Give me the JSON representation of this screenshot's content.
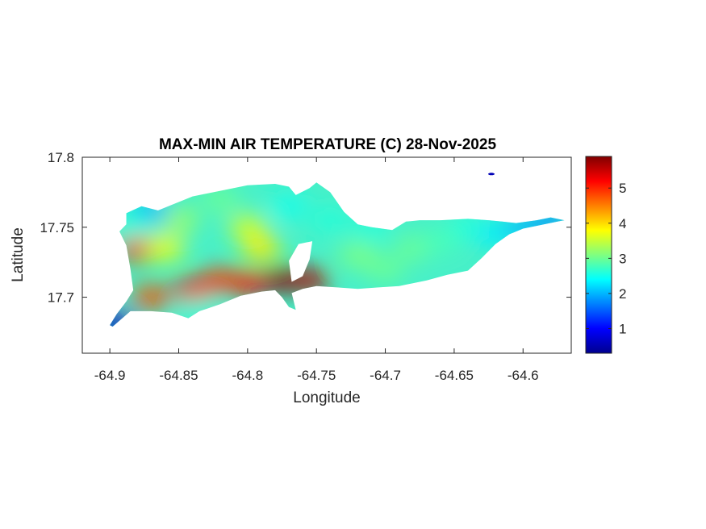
{
  "chart_data": {
    "type": "heatmap",
    "title": "MAX-MIN AIR TEMPERATURE (C) 28-Nov-2025",
    "xlabel": "Longitude",
    "ylabel": "Latitude",
    "xlim": [
      -64.92,
      -64.565
    ],
    "ylim": [
      17.66,
      17.8
    ],
    "xticks": [
      -64.9,
      -64.85,
      -64.8,
      -64.75,
      -64.7,
      -64.65,
      -64.6
    ],
    "xtick_labels": [
      "-64.9",
      "-64.85",
      "-64.8",
      "-64.75",
      "-64.7",
      "-64.65",
      "-64.6"
    ],
    "yticks": [
      17.7,
      17.75,
      17.8
    ],
    "ytick_labels": [
      "17.7",
      "17.75",
      "17.8"
    ],
    "colorbar": {
      "colormap": "jet",
      "range": [
        0.3,
        5.9
      ],
      "ticks": [
        1,
        2,
        3,
        4,
        5
      ],
      "tick_labels": [
        "1",
        "2",
        "3",
        "4",
        "5"
      ]
    },
    "grid": false,
    "island_outline": [
      [
        -64.898,
        17.679
      ],
      [
        -64.885,
        17.69
      ],
      [
        -64.87,
        17.69
      ],
      [
        -64.855,
        17.689
      ],
      [
        -64.843,
        17.685
      ],
      [
        -64.835,
        17.69
      ],
      [
        -64.82,
        17.695
      ],
      [
        -64.805,
        17.701
      ],
      [
        -64.79,
        17.704
      ],
      [
        -64.78,
        17.705
      ],
      [
        -64.775,
        17.7
      ],
      [
        -64.77,
        17.693
      ],
      [
        -64.765,
        17.691
      ],
      [
        -64.768,
        17.703
      ],
      [
        -64.76,
        17.706
      ],
      [
        -64.75,
        17.708
      ],
      [
        -64.735,
        17.707
      ],
      [
        -64.72,
        17.706
      ],
      [
        -64.705,
        17.707
      ],
      [
        -64.69,
        17.708
      ],
      [
        -64.67,
        17.712
      ],
      [
        -64.655,
        17.716
      ],
      [
        -64.64,
        17.719
      ],
      [
        -64.63,
        17.728
      ],
      [
        -64.62,
        17.738
      ],
      [
        -64.61,
        17.745
      ],
      [
        -64.6,
        17.749
      ],
      [
        -64.585,
        17.752
      ],
      [
        -64.575,
        17.754
      ],
      [
        -64.57,
        17.755
      ],
      [
        -64.58,
        17.757
      ],
      [
        -64.59,
        17.755
      ],
      [
        -64.605,
        17.753
      ],
      [
        -64.615,
        17.754
      ],
      [
        -64.625,
        17.755
      ],
      [
        -64.64,
        17.756
      ],
      [
        -64.66,
        17.755
      ],
      [
        -64.675,
        17.755
      ],
      [
        -64.685,
        17.754
      ],
      [
        -64.695,
        17.748
      ],
      [
        -64.71,
        17.75
      ],
      [
        -64.72,
        17.752
      ],
      [
        -64.73,
        17.761
      ],
      [
        -64.74,
        17.775
      ],
      [
        -64.75,
        17.782
      ],
      [
        -64.755,
        17.778
      ],
      [
        -64.765,
        17.773
      ],
      [
        -64.77,
        17.779
      ],
      [
        -64.78,
        17.781
      ],
      [
        -64.8,
        17.78
      ],
      [
        -64.82,
        17.776
      ],
      [
        -64.84,
        17.772
      ],
      [
        -64.855,
        17.766
      ],
      [
        -64.865,
        17.762
      ],
      [
        -64.877,
        17.765
      ],
      [
        -64.888,
        17.76
      ],
      [
        -64.888,
        17.752
      ],
      [
        -64.893,
        17.747
      ],
      [
        -64.888,
        17.737
      ],
      [
        -64.885,
        17.72
      ],
      [
        -64.883,
        17.705
      ],
      [
        -64.888,
        17.697
      ],
      [
        -64.895,
        17.688
      ],
      [
        -64.9,
        17.68
      ]
    ],
    "bay_outline": [
      [
        -64.768,
        17.711
      ],
      [
        -64.77,
        17.726
      ],
      [
        -64.763,
        17.738
      ],
      [
        -64.753,
        17.74
      ],
      [
        -64.755,
        17.727
      ],
      [
        -64.76,
        17.715
      ]
    ],
    "temperature_field": [
      {
        "lon": -64.775,
        "lat": 17.712,
        "value": 5.9
      },
      {
        "lon": -64.755,
        "lat": 17.712,
        "value": 5.6
      },
      {
        "lon": -64.8,
        "lat": 17.71,
        "value": 5.2
      },
      {
        "lon": -64.84,
        "lat": 17.705,
        "value": 5.3
      },
      {
        "lon": -64.82,
        "lat": 17.712,
        "value": 4.9
      },
      {
        "lon": -64.87,
        "lat": 17.7,
        "value": 4.8
      },
      {
        "lon": -64.88,
        "lat": 17.734,
        "value": 4.9
      },
      {
        "lon": -64.86,
        "lat": 17.735,
        "value": 3.8
      },
      {
        "lon": -64.85,
        "lat": 17.755,
        "value": 3.3
      },
      {
        "lon": -64.8,
        "lat": 17.75,
        "value": 3.6
      },
      {
        "lon": -64.79,
        "lat": 17.735,
        "value": 3.9
      },
      {
        "lon": -64.82,
        "lat": 17.77,
        "value": 3.0
      },
      {
        "lon": -64.77,
        "lat": 17.765,
        "value": 2.5
      },
      {
        "lon": -64.74,
        "lat": 17.755,
        "value": 2.6
      },
      {
        "lon": -64.72,
        "lat": 17.73,
        "value": 3.1
      },
      {
        "lon": -64.7,
        "lat": 17.72,
        "value": 3.0
      },
      {
        "lon": -64.68,
        "lat": 17.735,
        "value": 3.0
      },
      {
        "lon": -64.66,
        "lat": 17.74,
        "value": 2.8
      },
      {
        "lon": -64.64,
        "lat": 17.75,
        "value": 2.6
      },
      {
        "lon": -64.62,
        "lat": 17.745,
        "value": 2.3
      },
      {
        "lon": -64.6,
        "lat": 17.75,
        "value": 2.0
      },
      {
        "lon": -64.58,
        "lat": 17.754,
        "value": 1.8
      },
      {
        "lon": -64.87,
        "lat": 17.762,
        "value": 2.0
      },
      {
        "lon": -64.897,
        "lat": 17.681,
        "value": 0.6
      },
      {
        "lon": -64.885,
        "lat": 17.752,
        "value": 2.6
      },
      {
        "lon": -64.835,
        "lat": 17.69,
        "value": 2.6
      },
      {
        "lon": -64.71,
        "lat": 17.749,
        "value": 2.6
      },
      {
        "lon": -64.623,
        "lat": 17.788,
        "value": 0.6
      }
    ]
  }
}
